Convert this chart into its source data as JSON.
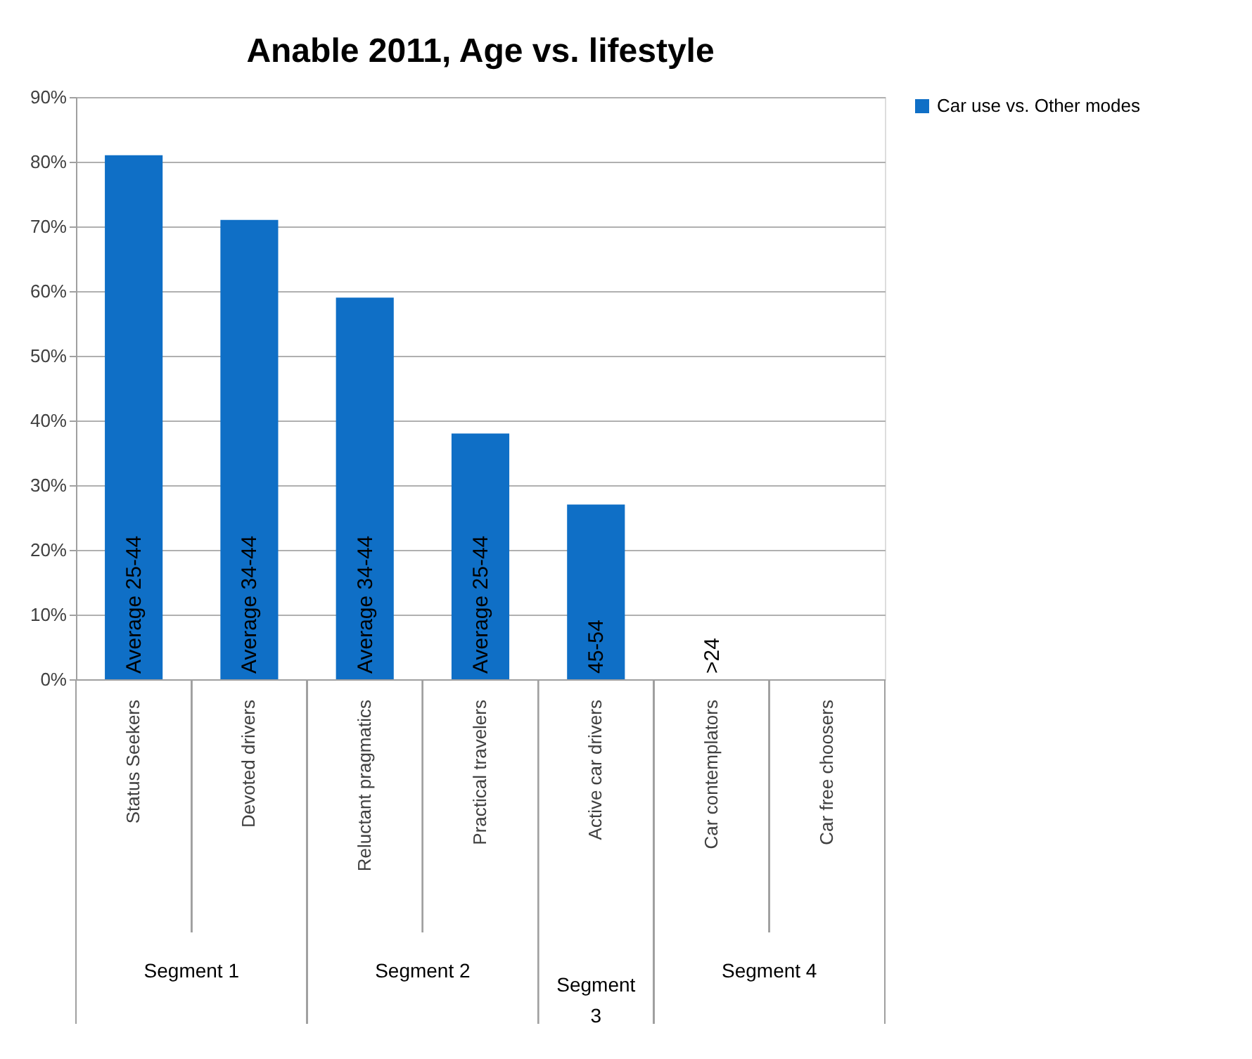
{
  "chart_data": {
    "type": "bar",
    "title": "Anable 2011, Age vs. lifestyle",
    "categories": [
      "Status Seekers",
      "Devoted drivers",
      "Reluctant pragmatics",
      "Practical travelers",
      "Active car drivers",
      "Car contemplators",
      "Car free choosers"
    ],
    "series": [
      {
        "name": "Car use vs. Other modes",
        "color": "#0f6fc6",
        "values": [
          0.81,
          0.71,
          0.59,
          0.38,
          0.27,
          null,
          null
        ]
      }
    ],
    "value_labels": [
      "Average 25-44",
      "Average 34-44",
      "Average 34-44",
      "Average 25-44",
      "45-54",
      ">24",
      null
    ],
    "annotations": [
      "Segment 1",
      "Segment 2",
      "Segment 3",
      "Segment 4"
    ],
    "ylim": [
      0,
      0.9
    ],
    "yticks": [
      {
        "value": 0,
        "label": "0%"
      },
      {
        "value": 0.1,
        "label": "10%"
      },
      {
        "value": 0.2,
        "label": "20%"
      },
      {
        "value": 0.3,
        "label": "30%"
      },
      {
        "value": 0.4,
        "label": "40%"
      },
      {
        "value": 0.5,
        "label": "50%"
      },
      {
        "value": 0.6,
        "label": "60%"
      },
      {
        "value": 0.7,
        "label": "70%"
      },
      {
        "value": 0.8,
        "label": "80%"
      },
      {
        "value": 0.9,
        "label": "90%"
      }
    ],
    "grid": "y",
    "legend": "right"
  }
}
